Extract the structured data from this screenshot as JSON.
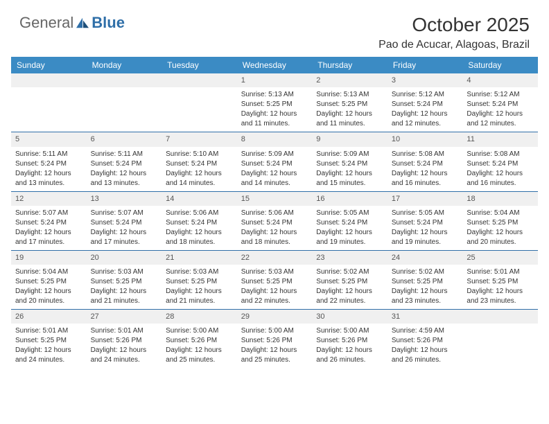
{
  "brand": {
    "part1": "General",
    "part2": "Blue"
  },
  "title": "October 2025",
  "subtitle": "Pao de Acucar, Alagoas, Brazil",
  "colors": {
    "header_bg": "#3b8bc4",
    "header_text": "#ffffff",
    "daynum_bg": "#f0f0f0",
    "week_border": "#2f6fa8",
    "brand_blue": "#2f6fa8",
    "text": "#333333"
  },
  "dow": [
    "Sunday",
    "Monday",
    "Tuesday",
    "Wednesday",
    "Thursday",
    "Friday",
    "Saturday"
  ],
  "labels": {
    "sunrise": "Sunrise:",
    "sunset": "Sunset:",
    "daylight": "Daylight:"
  },
  "weeks": [
    [
      {
        "n": "",
        "sr": "",
        "ss": "",
        "dl1": "",
        "dl2": ""
      },
      {
        "n": "",
        "sr": "",
        "ss": "",
        "dl1": "",
        "dl2": ""
      },
      {
        "n": "",
        "sr": "",
        "ss": "",
        "dl1": "",
        "dl2": ""
      },
      {
        "n": "1",
        "sr": "5:13 AM",
        "ss": "5:25 PM",
        "dl1": "12 hours",
        "dl2": "and 11 minutes."
      },
      {
        "n": "2",
        "sr": "5:13 AM",
        "ss": "5:25 PM",
        "dl1": "12 hours",
        "dl2": "and 11 minutes."
      },
      {
        "n": "3",
        "sr": "5:12 AM",
        "ss": "5:24 PM",
        "dl1": "12 hours",
        "dl2": "and 12 minutes."
      },
      {
        "n": "4",
        "sr": "5:12 AM",
        "ss": "5:24 PM",
        "dl1": "12 hours",
        "dl2": "and 12 minutes."
      }
    ],
    [
      {
        "n": "5",
        "sr": "5:11 AM",
        "ss": "5:24 PM",
        "dl1": "12 hours",
        "dl2": "and 13 minutes."
      },
      {
        "n": "6",
        "sr": "5:11 AM",
        "ss": "5:24 PM",
        "dl1": "12 hours",
        "dl2": "and 13 minutes."
      },
      {
        "n": "7",
        "sr": "5:10 AM",
        "ss": "5:24 PM",
        "dl1": "12 hours",
        "dl2": "and 14 minutes."
      },
      {
        "n": "8",
        "sr": "5:09 AM",
        "ss": "5:24 PM",
        "dl1": "12 hours",
        "dl2": "and 14 minutes."
      },
      {
        "n": "9",
        "sr": "5:09 AM",
        "ss": "5:24 PM",
        "dl1": "12 hours",
        "dl2": "and 15 minutes."
      },
      {
        "n": "10",
        "sr": "5:08 AM",
        "ss": "5:24 PM",
        "dl1": "12 hours",
        "dl2": "and 16 minutes."
      },
      {
        "n": "11",
        "sr": "5:08 AM",
        "ss": "5:24 PM",
        "dl1": "12 hours",
        "dl2": "and 16 minutes."
      }
    ],
    [
      {
        "n": "12",
        "sr": "5:07 AM",
        "ss": "5:24 PM",
        "dl1": "12 hours",
        "dl2": "and 17 minutes."
      },
      {
        "n": "13",
        "sr": "5:07 AM",
        "ss": "5:24 PM",
        "dl1": "12 hours",
        "dl2": "and 17 minutes."
      },
      {
        "n": "14",
        "sr": "5:06 AM",
        "ss": "5:24 PM",
        "dl1": "12 hours",
        "dl2": "and 18 minutes."
      },
      {
        "n": "15",
        "sr": "5:06 AM",
        "ss": "5:24 PM",
        "dl1": "12 hours",
        "dl2": "and 18 minutes."
      },
      {
        "n": "16",
        "sr": "5:05 AM",
        "ss": "5:24 PM",
        "dl1": "12 hours",
        "dl2": "and 19 minutes."
      },
      {
        "n": "17",
        "sr": "5:05 AM",
        "ss": "5:24 PM",
        "dl1": "12 hours",
        "dl2": "and 19 minutes."
      },
      {
        "n": "18",
        "sr": "5:04 AM",
        "ss": "5:25 PM",
        "dl1": "12 hours",
        "dl2": "and 20 minutes."
      }
    ],
    [
      {
        "n": "19",
        "sr": "5:04 AM",
        "ss": "5:25 PM",
        "dl1": "12 hours",
        "dl2": "and 20 minutes."
      },
      {
        "n": "20",
        "sr": "5:03 AM",
        "ss": "5:25 PM",
        "dl1": "12 hours",
        "dl2": "and 21 minutes."
      },
      {
        "n": "21",
        "sr": "5:03 AM",
        "ss": "5:25 PM",
        "dl1": "12 hours",
        "dl2": "and 21 minutes."
      },
      {
        "n": "22",
        "sr": "5:03 AM",
        "ss": "5:25 PM",
        "dl1": "12 hours",
        "dl2": "and 22 minutes."
      },
      {
        "n": "23",
        "sr": "5:02 AM",
        "ss": "5:25 PM",
        "dl1": "12 hours",
        "dl2": "and 22 minutes."
      },
      {
        "n": "24",
        "sr": "5:02 AM",
        "ss": "5:25 PM",
        "dl1": "12 hours",
        "dl2": "and 23 minutes."
      },
      {
        "n": "25",
        "sr": "5:01 AM",
        "ss": "5:25 PM",
        "dl1": "12 hours",
        "dl2": "and 23 minutes."
      }
    ],
    [
      {
        "n": "26",
        "sr": "5:01 AM",
        "ss": "5:25 PM",
        "dl1": "12 hours",
        "dl2": "and 24 minutes."
      },
      {
        "n": "27",
        "sr": "5:01 AM",
        "ss": "5:26 PM",
        "dl1": "12 hours",
        "dl2": "and 24 minutes."
      },
      {
        "n": "28",
        "sr": "5:00 AM",
        "ss": "5:26 PM",
        "dl1": "12 hours",
        "dl2": "and 25 minutes."
      },
      {
        "n": "29",
        "sr": "5:00 AM",
        "ss": "5:26 PM",
        "dl1": "12 hours",
        "dl2": "and 25 minutes."
      },
      {
        "n": "30",
        "sr": "5:00 AM",
        "ss": "5:26 PM",
        "dl1": "12 hours",
        "dl2": "and 26 minutes."
      },
      {
        "n": "31",
        "sr": "4:59 AM",
        "ss": "5:26 PM",
        "dl1": "12 hours",
        "dl2": "and 26 minutes."
      },
      {
        "n": "",
        "sr": "",
        "ss": "",
        "dl1": "",
        "dl2": ""
      }
    ]
  ]
}
